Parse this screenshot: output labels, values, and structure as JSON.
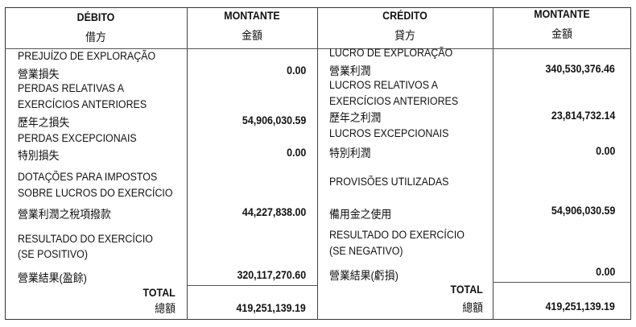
{
  "debit": {
    "header": "DÉBITO",
    "header_zh": "借方",
    "amount_header": "MONTANTE",
    "amount_header_zh": "金額",
    "items": [
      {
        "label": "PREJUÍZO DE EXPLORAÇÃO",
        "label_zh": "營業損失",
        "amount": "0.00"
      },
      {
        "label1": "PERDAS RELATIVAS A",
        "label2": "EXERCÍCIOS ANTERIORES",
        "label_zh": "歷年之損失",
        "amount": "54,906,030.59"
      },
      {
        "label": "PERDAS EXCEPCIONAIS",
        "label_zh": "特別損失",
        "amount": "0.00"
      },
      {
        "label1": "DOTAÇÕES PARA IMPOSTOS",
        "label2": "SOBRE LUCROS DO EXERCÍCIO",
        "label_zh": "營業利潤之稅項撥款",
        "amount": "44,227,838.00"
      },
      {
        "label1": "RESULTADO DO EXERCÍCIO",
        "label2": "(SE POSITIVO)",
        "label_zh": "營業結果(盈餘)",
        "amount": "320,117,270.60"
      }
    ],
    "total_label": "TOTAL",
    "total_label_zh": "總額",
    "total": "419,251,139.19"
  },
  "credit": {
    "header": "CRÉDITO",
    "header_zh": "貸方",
    "amount_header": "MONTANTE",
    "amount_header_zh": "金額",
    "items": [
      {
        "label": "LUCRO DE EXPLORAÇÃO",
        "label_zh": "營業利潤",
        "amount": "340,530,376.46"
      },
      {
        "label1": "LUCROS RELATIVOS A",
        "label2": "EXERCÍCIOS ANTERIORES",
        "label_zh": "歷年之利潤",
        "amount": "23,814,732.14"
      },
      {
        "label": "LUCROS EXCEPCIONAIS",
        "label_zh": "特別利潤",
        "amount": "0.00"
      },
      {
        "label": "PROVISÕES UTILIZADAS",
        "label_zh": "備用金之使用",
        "amount": "54,906,030.59"
      },
      {
        "label1": "RESULTADO DO EXERCÍCIO",
        "label2": "(SE NEGATIVO)",
        "label_zh": "營業結果(虧損)",
        "amount": "0.00"
      }
    ],
    "total_label": "TOTAL",
    "total_label_zh": "總額",
    "total": "419,251,139.19"
  }
}
